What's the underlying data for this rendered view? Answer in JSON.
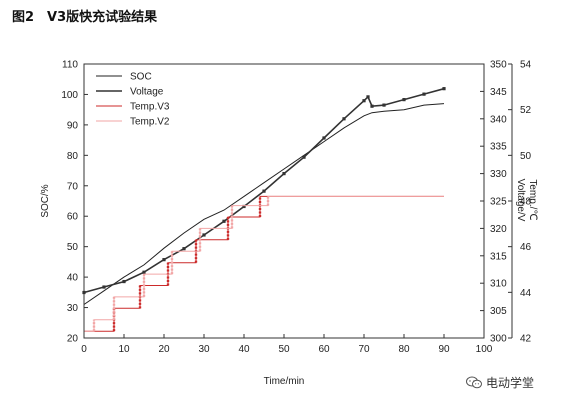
{
  "figure": {
    "title": "图2　V3版快充试验结果",
    "watermark": "电动学堂"
  },
  "chart_data": {
    "type": "line",
    "xlabel": "Time/min",
    "ylabel_left": "SOC/%",
    "ylabel_right_voltage": "Voltage/V",
    "ylabel_right_temp": "Temp./℃",
    "xlim": [
      0,
      100
    ],
    "xticks": [
      0,
      10,
      20,
      30,
      40,
      50,
      60,
      70,
      80,
      90,
      100
    ],
    "ylim_soc": [
      20,
      110
    ],
    "yticks_soc": [
      20,
      30,
      40,
      50,
      60,
      70,
      80,
      90,
      100,
      110
    ],
    "ylim_voltage": [
      300,
      350
    ],
    "yticks_voltage": [
      300,
      305,
      310,
      315,
      320,
      325,
      330,
      335,
      340,
      345,
      350
    ],
    "ylim_temp": [
      42,
      54
    ],
    "yticks_temp": [
      42,
      44,
      46,
      48,
      50,
      52,
      54
    ],
    "legend_position": "top-left",
    "series": [
      {
        "name": "SOC",
        "axis": "soc",
        "color": "#222222",
        "style": "solid",
        "x": [
          0,
          5,
          10,
          15,
          20,
          25,
          30,
          35,
          40,
          45,
          50,
          55,
          60,
          65,
          70,
          72,
          75,
          80,
          85,
          90
        ],
        "y": [
          31,
          35.5,
          40,
          44,
          49.5,
          54.5,
          59,
          62,
          66.5,
          71,
          75.5,
          80,
          84.5,
          89,
          93,
          94,
          94.5,
          95,
          96.5,
          97
        ]
      },
      {
        "name": "Voltage",
        "axis": "voltage",
        "color": "#333333",
        "style": "marked",
        "x": [
          0,
          5,
          10,
          15,
          20,
          25,
          30,
          35,
          40,
          45,
          50,
          55,
          60,
          65,
          70,
          71,
          72,
          75,
          80,
          85,
          90
        ],
        "y": [
          308.3,
          309.3,
          310.3,
          312,
          314.3,
          316.3,
          318.8,
          321.3,
          324,
          326.8,
          330,
          333,
          336.5,
          340,
          343.3,
          344,
          342.3,
          342.5,
          343.5,
          344.5,
          345.5
        ]
      },
      {
        "name": "Temp.V3",
        "axis": "temp",
        "color": "#cc2a2a",
        "style": "step",
        "x": [
          0,
          7.5,
          7.5,
          14,
          14,
          21,
          21,
          28,
          28,
          36,
          36,
          44,
          44,
          46,
          46,
          90
        ],
        "y": [
          42.3,
          42.3,
          43.3,
          43.3,
          44.3,
          44.3,
          45.3,
          45.3,
          46.3,
          46.3,
          47.3,
          47.3,
          48.2,
          48.2,
          48.2,
          48.2
        ]
      },
      {
        "name": "Temp.V2",
        "axis": "temp",
        "color": "#f2a6a6",
        "style": "step",
        "x": [
          0,
          2.5,
          2.5,
          7.5,
          7.5,
          15,
          15,
          22,
          22,
          29,
          29,
          37,
          37,
          46,
          46,
          90
        ],
        "y": [
          42.3,
          42.3,
          42.8,
          42.8,
          43.8,
          43.8,
          44.8,
          44.8,
          45.8,
          45.8,
          46.8,
          46.8,
          47.8,
          47.8,
          48.2,
          48.2
        ]
      }
    ]
  }
}
